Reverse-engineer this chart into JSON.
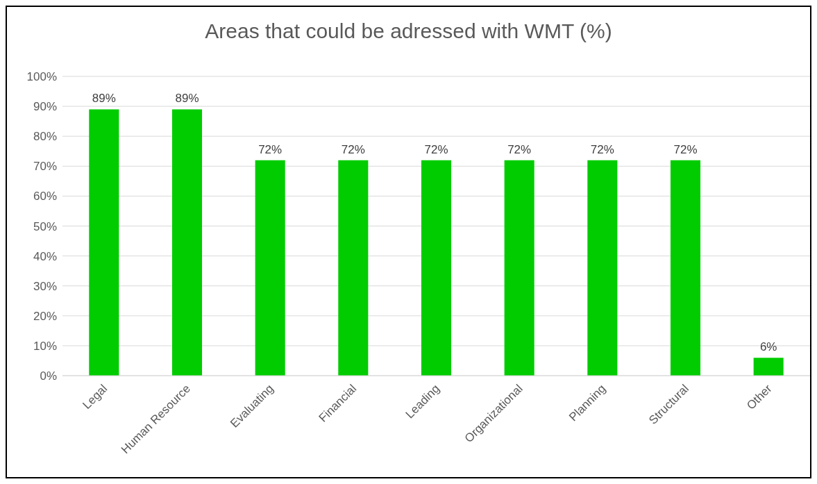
{
  "chart_data": {
    "type": "bar",
    "title": "Areas that could be adressed with WMT (%)",
    "categories": [
      "Legal",
      "Human Resource",
      "Evaluating",
      "Financial",
      "Leading",
      "Organizational",
      "Planning",
      "Structural",
      "Other"
    ],
    "values": [
      89,
      89,
      72,
      72,
      72,
      72,
      72,
      72,
      6
    ],
    "value_labels": [
      "89%",
      "89%",
      "72%",
      "72%",
      "72%",
      "72%",
      "72%",
      "72%",
      "6%"
    ],
    "color": "#00cc00",
    "ylim": [
      0,
      100
    ],
    "yticks": [
      {
        "value": 0,
        "label": "0%"
      },
      {
        "value": 10,
        "label": "10%"
      },
      {
        "value": 20,
        "label": "20%"
      },
      {
        "value": 30,
        "label": "30%"
      },
      {
        "value": 40,
        "label": "40%"
      },
      {
        "value": 50,
        "label": "50%"
      },
      {
        "value": 60,
        "label": "60%"
      },
      {
        "value": 70,
        "label": "70%"
      },
      {
        "value": 80,
        "label": "80%"
      },
      {
        "value": 90,
        "label": "90%"
      },
      {
        "value": 100,
        "label": "100%"
      }
    ],
    "grid": "y",
    "legend": false
  }
}
